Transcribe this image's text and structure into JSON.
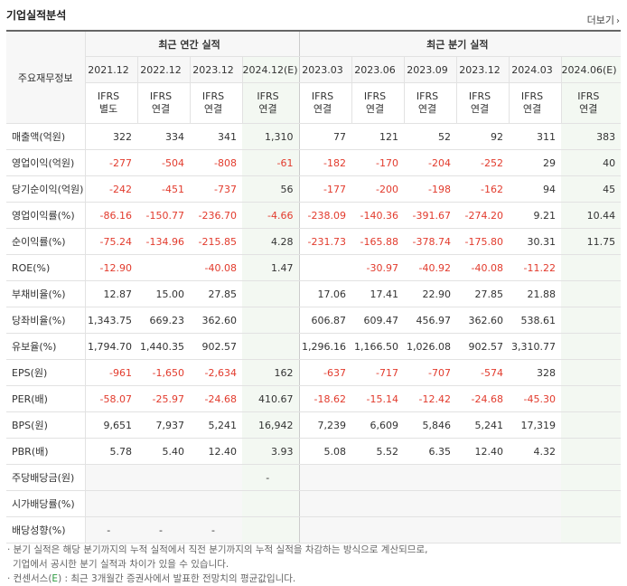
{
  "header": {
    "title": "기업실적분석",
    "more_label": "더보기"
  },
  "stub_label": "주요재무정보",
  "sections": {
    "annual": "최근 연간 실적",
    "quarterly": "최근 분기 실적"
  },
  "periods": [
    "2021.12",
    "2022.12",
    "2023.12",
    "2024.12(E)",
    "2023.03",
    "2023.06",
    "2023.09",
    "2023.12",
    "2024.03",
    "2024.06(E)"
  ],
  "ifrs": [
    [
      "IFRS",
      "별도"
    ],
    [
      "IFRS",
      "연결"
    ],
    [
      "IFRS",
      "연결"
    ],
    [
      "IFRS",
      "연결"
    ],
    [
      "IFRS",
      "연결"
    ],
    [
      "IFRS",
      "연결"
    ],
    [
      "IFRS",
      "연결"
    ],
    [
      "IFRS",
      "연결"
    ],
    [
      "IFRS",
      "연결"
    ],
    [
      "IFRS",
      "연결"
    ]
  ],
  "rows": [
    {
      "label": "매출액(억원)",
      "values": [
        "322",
        "334",
        "341",
        "1,310",
        "77",
        "121",
        "52",
        "92",
        "311",
        "383"
      ]
    },
    {
      "label": "영업이익(억원)",
      "values": [
        "-277",
        "-504",
        "-808",
        "-61",
        "-182",
        "-170",
        "-204",
        "-252",
        "29",
        "40"
      ]
    },
    {
      "label": "당기순이익(억원)",
      "values": [
        "-242",
        "-451",
        "-737",
        "56",
        "-177",
        "-200",
        "-198",
        "-162",
        "94",
        "45"
      ]
    },
    {
      "label": "영업이익률(%)",
      "values": [
        "-86.16",
        "-150.77",
        "-236.70",
        "-4.66",
        "-238.09",
        "-140.36",
        "-391.67",
        "-274.20",
        "9.21",
        "10.44"
      ]
    },
    {
      "label": "순이익률(%)",
      "values": [
        "-75.24",
        "-134.96",
        "-215.85",
        "4.28",
        "-231.73",
        "-165.88",
        "-378.74",
        "-175.80",
        "30.31",
        "11.75"
      ]
    },
    {
      "label": "ROE(%)",
      "values": [
        "-12.90",
        "",
        "-40.08",
        "1.47",
        "",
        "-30.97",
        "-40.92",
        "-40.08",
        "-11.22",
        ""
      ]
    },
    {
      "label": "부채비율(%)",
      "values": [
        "12.87",
        "15.00",
        "27.85",
        "",
        "17.06",
        "17.41",
        "22.90",
        "27.85",
        "21.88",
        ""
      ]
    },
    {
      "label": "당좌비율(%)",
      "values": [
        "1,343.75",
        "669.23",
        "362.60",
        "",
        "606.87",
        "609.47",
        "456.97",
        "362.60",
        "538.61",
        ""
      ]
    },
    {
      "label": "유보율(%)",
      "values": [
        "1,794.70",
        "1,440.35",
        "902.57",
        "",
        "1,296.16",
        "1,166.50",
        "1,026.08",
        "902.57",
        "3,310.77",
        ""
      ]
    },
    {
      "label": "EPS(원)",
      "values": [
        "-961",
        "-1,650",
        "-2,634",
        "162",
        "-637",
        "-717",
        "-707",
        "-574",
        "328",
        ""
      ]
    },
    {
      "label": "PER(배)",
      "values": [
        "-58.07",
        "-25.97",
        "-24.68",
        "410.67",
        "-18.62",
        "-15.14",
        "-12.42",
        "-24.68",
        "-45.30",
        ""
      ]
    },
    {
      "label": "BPS(원)",
      "values": [
        "9,651",
        "7,937",
        "5,241",
        "16,942",
        "7,239",
        "6,609",
        "5,846",
        "5,241",
        "17,319",
        ""
      ]
    },
    {
      "label": "PBR(배)",
      "values": [
        "5.78",
        "5.40",
        "12.40",
        "3.93",
        "5.08",
        "5.52",
        "6.35",
        "12.40",
        "4.32",
        ""
      ]
    },
    {
      "label": "주당배당금(원)",
      "values": [
        "",
        "",
        "",
        "-",
        "",
        "",
        "",
        "",
        "",
        ""
      ]
    },
    {
      "label": "시가배당률(%)",
      "values": [
        "",
        "",
        "",
        "",
        "",
        "",
        "",
        "",
        "",
        ""
      ]
    },
    {
      "label": "배당성향(%)",
      "values": [
        "-",
        "-",
        "-",
        "",
        "",
        "",
        "",
        "",
        "",
        ""
      ]
    }
  ],
  "footnotes": {
    "line1": "· 분기 실적은 해당 분기까지의 누적 실적에서 직전 분기까지의 누적 실적을 차감하는 방식으로 계산되므로,",
    "line2": "기업에서 공시한 분기 실적과 차이가 있을 수 있습니다.",
    "line3_pre": "· 컨센서스(",
    "line3_e": "E",
    "line3_post": ") : 최근 3개월간 증권사에서 발표한 전망치의 평균값입니다."
  },
  "colors": {
    "negative": "#e23b2d",
    "ifrs": "#e2562b",
    "estimate_bg": "#f3f8f2"
  }
}
